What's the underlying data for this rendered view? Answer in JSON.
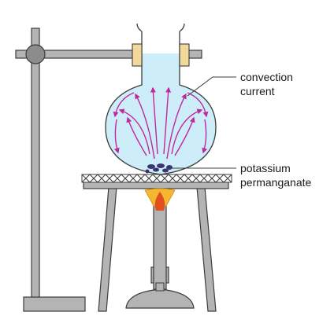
{
  "labels": {
    "convection_line1": "convection",
    "convection_line2": "current",
    "potassium_line1": "potassium",
    "potassium_line2": "permanganate"
  },
  "colors": {
    "outline": "#3c3c3c",
    "stand_grey": "#b4b4b4",
    "stand_dark": "#8c8c8c",
    "water": "#cdeef8",
    "cork": "#f2d89a",
    "arrow": "#c0289e",
    "crystal": "#3a3470",
    "flame_outer": "#f5b731",
    "flame_inner": "#e0501e",
    "flame_core": "#fff3a8"
  },
  "icons": {
    "burner": "bunsen-burner-icon",
    "flask": "round-bottom-flask-icon",
    "gauze": "wire-gauze-icon"
  }
}
